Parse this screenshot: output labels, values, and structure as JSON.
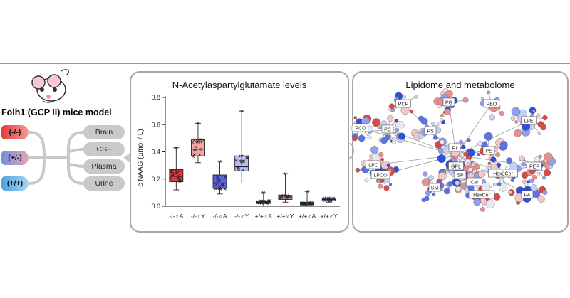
{
  "model": {
    "title": "Folh1 (GCP II) mice model",
    "genotypes": [
      {
        "label": "(-/-)",
        "color": "#e84a4a"
      },
      {
        "label": "(+/-)",
        "color": "#9db2e6"
      },
      {
        "label": "(+/+)",
        "color": "#79b9e3"
      }
    ],
    "samples": [
      "Brain",
      "CSF",
      "Plasma",
      "Urine"
    ]
  },
  "naag_panel": {
    "title": "N-Acetylaspartylglutamate levels"
  },
  "lipidome_panel": {
    "title": "Lipidome and metabolome",
    "network_labels": [
      "PC",
      "PCO",
      "PCP",
      "PG",
      "PEO",
      "LPE",
      "PE",
      "PI",
      "PEP",
      "PS",
      "LPC",
      "LPCO",
      "GPL",
      "SP",
      "SM",
      "Hex2Cer",
      "Cer",
      "HexCer",
      "FA"
    ]
  },
  "chart_data": {
    "type": "box",
    "title": "N-Acetylaspartylglutamate levels",
    "xlabel": "",
    "ylabel": "c NAAG (µmol / L)",
    "ylim": [
      0,
      0.8
    ],
    "yticks": [
      "0.0",
      "0.2",
      "0.4",
      "0.6",
      "0.8"
    ],
    "categories": [
      "-/-♀A",
      "-/-♀Y",
      "-/-♂A",
      "-/-♂Y",
      "+/+♀A",
      "+/+♀Y",
      "+/+♂A",
      "+/+♂Y"
    ],
    "series": [
      {
        "min": 0.12,
        "q1": 0.18,
        "median": 0.22,
        "q3": 0.27,
        "max": 0.43,
        "fill": "#e03b3b"
      },
      {
        "min": 0.32,
        "q1": 0.37,
        "median": 0.42,
        "q3": 0.49,
        "max": 0.61,
        "fill": "#f2a3a3"
      },
      {
        "min": 0.09,
        "q1": 0.13,
        "median": 0.17,
        "q3": 0.23,
        "max": 0.33,
        "fill": "#5b63dd"
      },
      {
        "min": 0.17,
        "q1": 0.26,
        "median": 0.29,
        "q3": 0.37,
        "max": 0.7,
        "fill": "#b8bdf0"
      },
      {
        "min": 0.0,
        "q1": 0.02,
        "median": 0.03,
        "q3": 0.04,
        "max": 0.1,
        "fill": "#e03b3b"
      },
      {
        "min": 0.03,
        "q1": 0.05,
        "median": 0.06,
        "q3": 0.08,
        "max": 0.24,
        "fill": "#f2a3a3"
      },
      {
        "min": 0.0,
        "q1": 0.01,
        "median": 0.015,
        "q3": 0.03,
        "max": 0.11,
        "fill": "#5b63dd"
      },
      {
        "min": 0.03,
        "q1": 0.04,
        "median": 0.05,
        "q3": 0.06,
        "max": 0.06,
        "fill": "#b8bdf0"
      }
    ]
  }
}
